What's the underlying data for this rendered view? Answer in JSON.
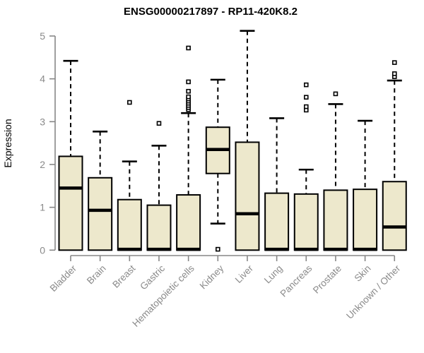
{
  "chart_data": {
    "type": "boxplot",
    "title": "ENSG00000217897 - RP11-420K8.2",
    "ylabel": "Expression",
    "ylim": [
      0,
      5
    ],
    "yticks": [
      0,
      1,
      2,
      3,
      4,
      5
    ],
    "grid": false,
    "legend": "none",
    "categories": [
      "Bladder",
      "Brain",
      "Breast",
      "Gastric",
      "Hematopoietic cells",
      "Kidney",
      "Liver",
      "Lung",
      "Pancreas",
      "Prostate",
      "Skin",
      "Unknown / Other"
    ],
    "series": [
      {
        "name": "Bladder",
        "low": 0,
        "q1": 0,
        "median": 1.45,
        "q3": 2.19,
        "high": 4.42,
        "outliers": []
      },
      {
        "name": "Brain",
        "low": 0,
        "q1": 0,
        "median": 0.93,
        "q3": 1.69,
        "high": 2.77,
        "outliers": []
      },
      {
        "name": "Breast",
        "low": 0,
        "q1": 0,
        "median": 0.02,
        "q3": 1.18,
        "high": 2.07,
        "outliers": [
          3.45
        ]
      },
      {
        "name": "Gastric",
        "low": 0,
        "q1": 0,
        "median": 0.02,
        "q3": 1.05,
        "high": 2.44,
        "outliers": [
          2.96
        ]
      },
      {
        "name": "Hematopoietic cells",
        "low": 0,
        "q1": 0,
        "median": 0.02,
        "q3": 1.29,
        "high": 3.2,
        "outliers": [
          3.28,
          3.33,
          3.38,
          3.43,
          3.48,
          3.53,
          3.58,
          3.71,
          3.93,
          4.72
        ]
      },
      {
        "name": "Kidney",
        "low": 0.62,
        "q1": 1.79,
        "median": 2.35,
        "q3": 2.87,
        "high": 3.98,
        "outliers": [
          0.02
        ]
      },
      {
        "name": "Liver",
        "low": 0,
        "q1": 0,
        "median": 0.85,
        "q3": 2.52,
        "high": 5.12,
        "outliers": []
      },
      {
        "name": "Lung",
        "low": 0,
        "q1": 0,
        "median": 0.02,
        "q3": 1.33,
        "high": 3.08,
        "outliers": []
      },
      {
        "name": "Pancreas",
        "low": 0,
        "q1": 0,
        "median": 0.02,
        "q3": 1.31,
        "high": 1.88,
        "outliers": [
          3.27,
          3.35,
          3.57,
          3.86
        ]
      },
      {
        "name": "Prostate",
        "low": 0,
        "q1": 0,
        "median": 0.02,
        "q3": 1.4,
        "high": 3.41,
        "outliers": [
          3.65
        ]
      },
      {
        "name": "Skin",
        "low": 0,
        "q1": 0,
        "median": 0.02,
        "q3": 1.42,
        "high": 3.02,
        "outliers": []
      },
      {
        "name": "Unknown / Other",
        "low": 0,
        "q1": 0,
        "median": 0.54,
        "q3": 1.6,
        "high": 3.96,
        "outliers": [
          4.05,
          4.12,
          4.38
        ]
      }
    ],
    "colors": {
      "box_fill": "#EDE8CC",
      "box_stroke": "#000000",
      "median": "#000000",
      "whisker": "#000000",
      "outlier_stroke": "#000000",
      "axis": "#878787",
      "tick_labels": "#8A8A8A",
      "title": "#000000",
      "background": "#FFFFFF"
    }
  }
}
